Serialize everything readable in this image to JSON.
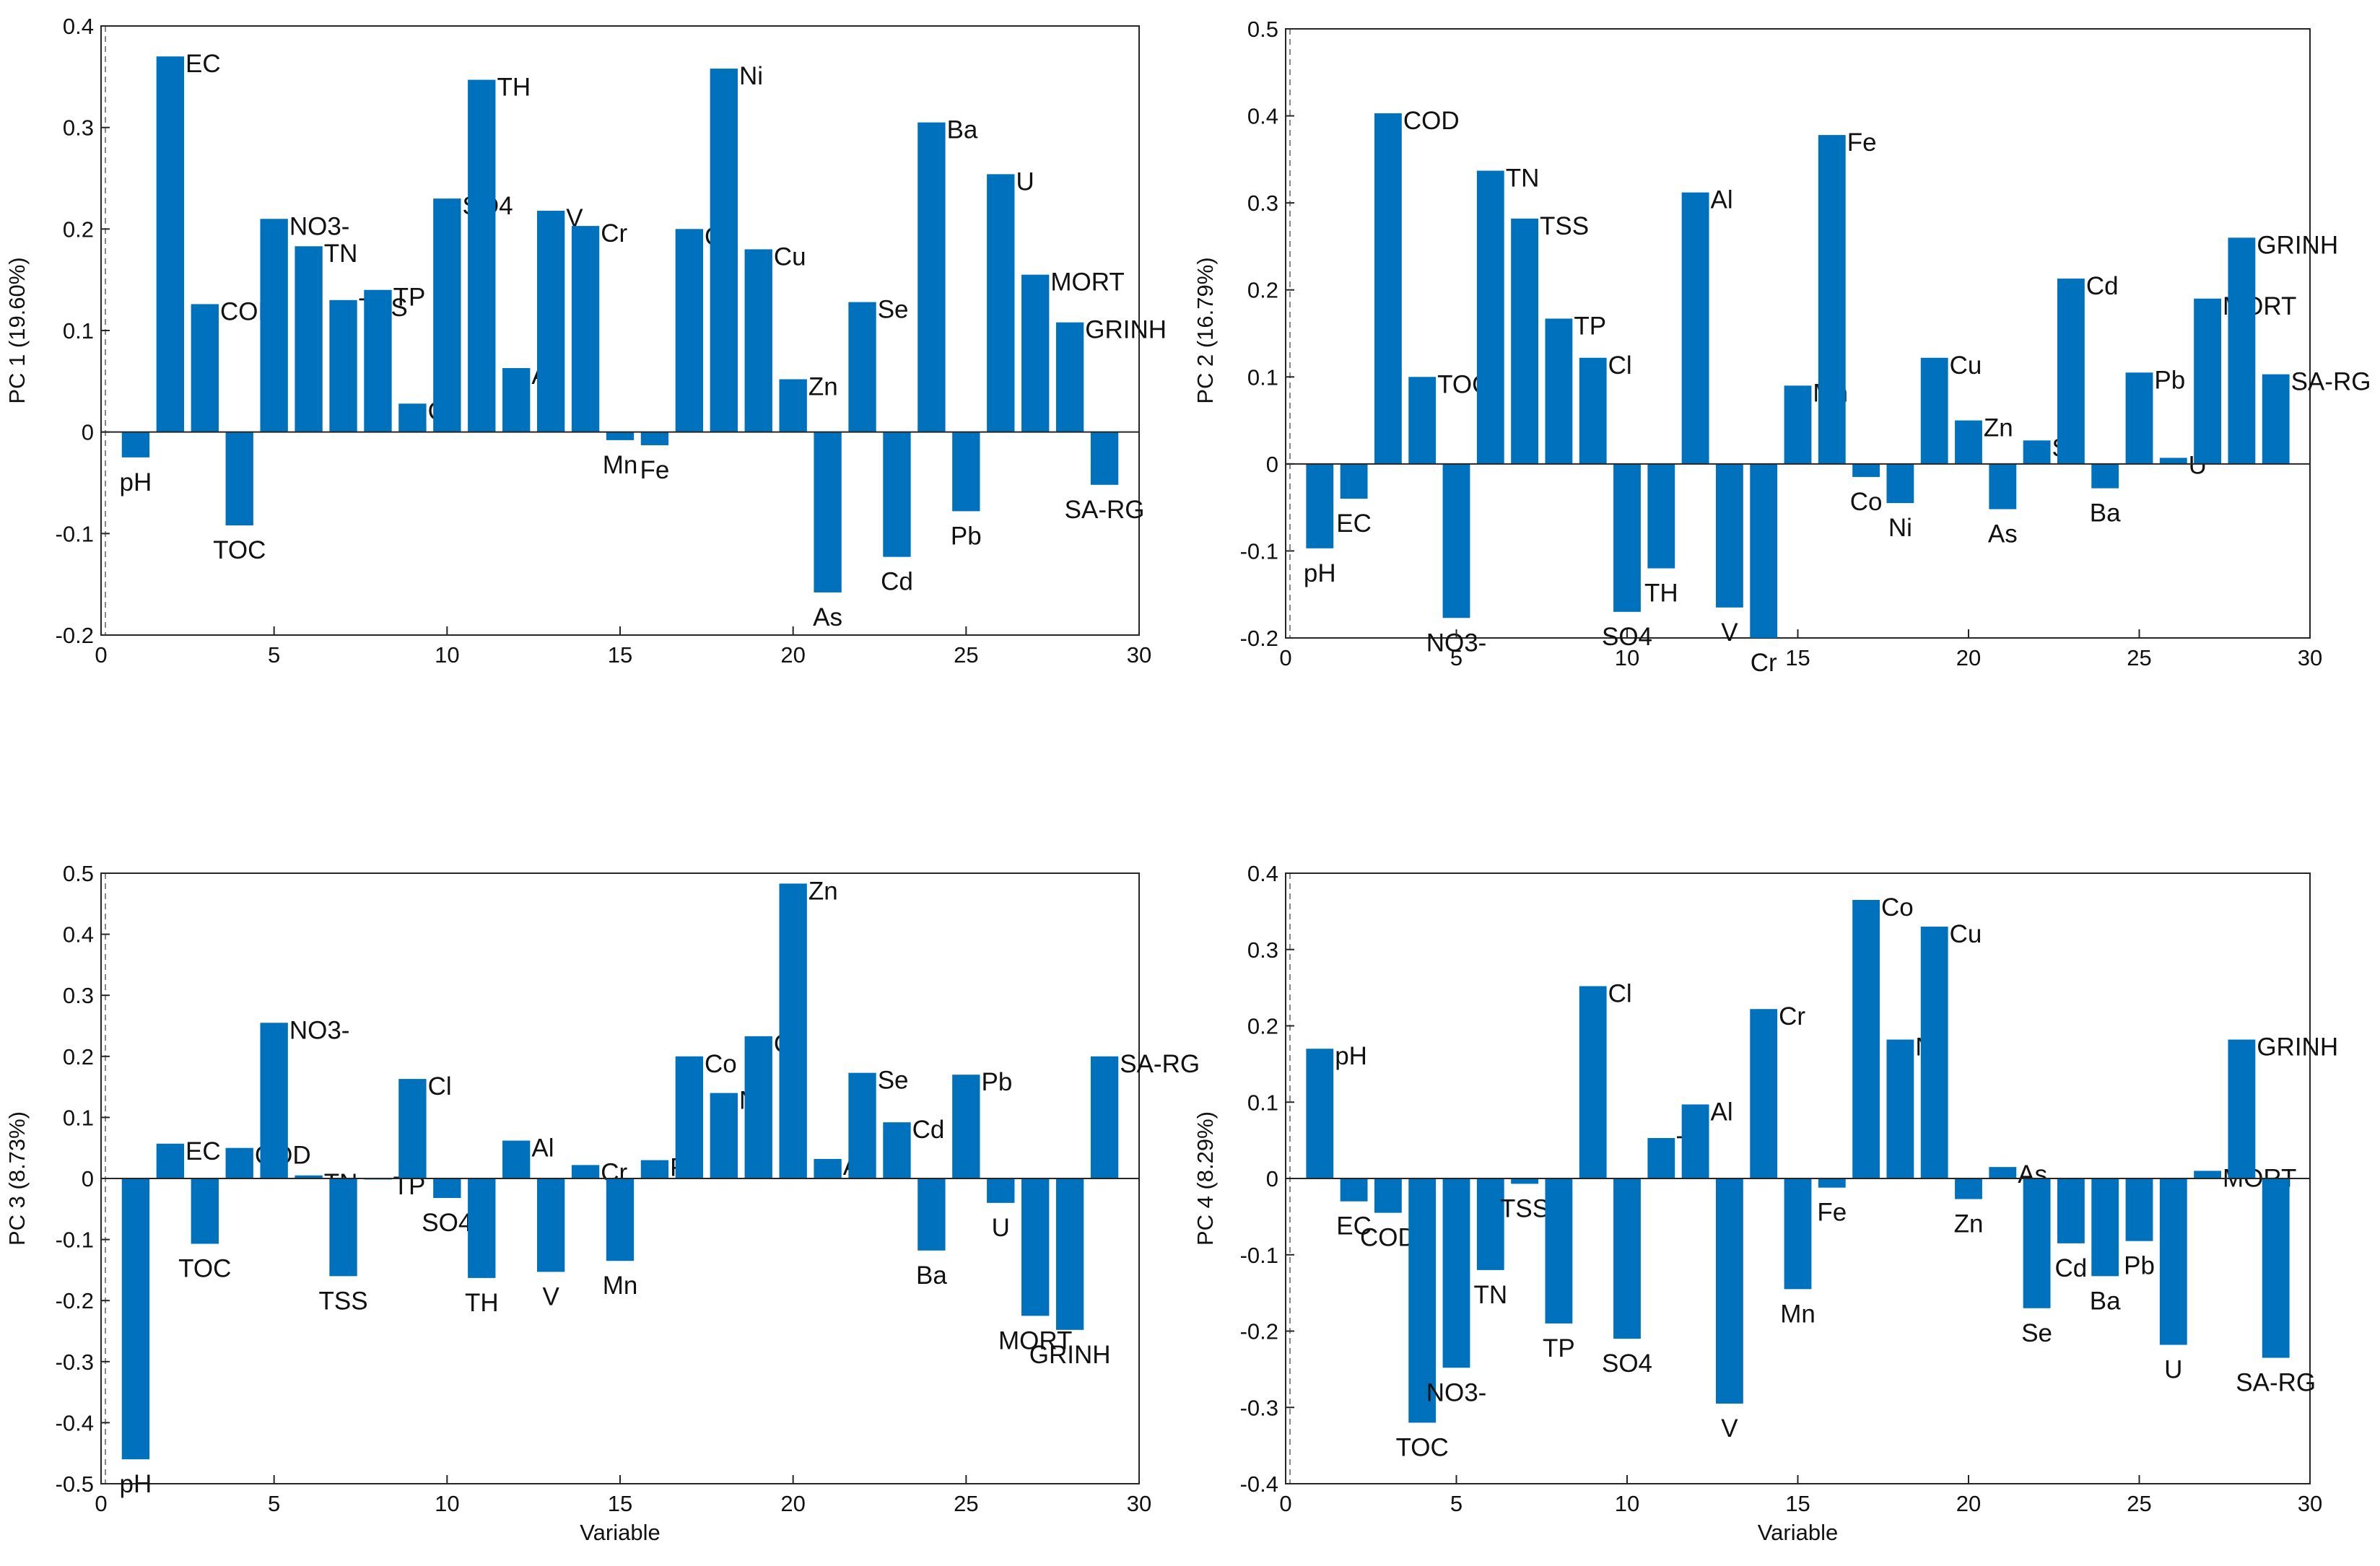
{
  "colors": {
    "bar": "#0072bd",
    "axis": "#262626",
    "zero_line": "#262626",
    "dashed": "#888888"
  },
  "chart_data": [
    {
      "type": "bar",
      "panel": "PC1",
      "ylabel": "PC 1 (19.60%)",
      "xlabel": "",
      "xlim": [
        0,
        30
      ],
      "ylim": [
        -0.2,
        0.4
      ],
      "xticks": [
        0,
        5,
        10,
        15,
        20,
        25,
        30
      ],
      "yticks": [
        -0.2,
        -0.1,
        0,
        0.1,
        0.2,
        0.3,
        0.4
      ],
      "ytick_labels": [
        "-0.2",
        "-0.1",
        "0",
        "0.1",
        "0.2",
        "0.3",
        "0.4"
      ],
      "labels": [
        "pH",
        "EC",
        "COD",
        "TOC",
        "NO3-",
        "TN",
        "TSS",
        "TP",
        "Cl",
        "SO4",
        "TH",
        "Al",
        "V",
        "Cr",
        "Mn",
        "Fe",
        "Co",
        "Ni",
        "Cu",
        "Zn",
        "As",
        "Se",
        "Cd",
        "Ba",
        "Pb",
        "U",
        "MORT",
        "GRINH",
        "SA-RG"
      ],
      "values": [
        -0.025,
        0.37,
        0.126,
        -0.092,
        0.21,
        0.183,
        0.13,
        0.14,
        0.028,
        0.23,
        0.347,
        0.063,
        0.218,
        0.203,
        -0.008,
        -0.013,
        0.2,
        0.358,
        0.18,
        0.052,
        -0.158,
        0.128,
        -0.123,
        0.305,
        -0.078,
        0.254,
        0.155,
        0.108,
        -0.052
      ]
    },
    {
      "type": "bar",
      "panel": "PC2",
      "ylabel": "PC 2 (16.79%)",
      "xlabel": "",
      "xlim": [
        0,
        30
      ],
      "ylim": [
        -0.2,
        0.5
      ],
      "xticks": [
        0,
        5,
        10,
        15,
        20,
        25,
        30
      ],
      "yticks": [
        -0.2,
        -0.1,
        0,
        0.1,
        0.2,
        0.3,
        0.4,
        0.5
      ],
      "ytick_labels": [
        "-0.2",
        "-0.1",
        "0",
        "0.1",
        "0.2",
        "0.3",
        "0.4",
        "0.5"
      ],
      "labels": [
        "pH",
        "EC",
        "COD",
        "TOC",
        "NO3-",
        "TN",
        "TSS",
        "TP",
        "Cl",
        "SO4",
        "TH",
        "Al",
        "V",
        "Cr",
        "Mn",
        "Fe",
        "Co",
        "Ni",
        "Cu",
        "Zn",
        "As",
        "Se",
        "Cd",
        "Ba",
        "Pb",
        "U",
        "MORT",
        "GRINH",
        "SA-RG"
      ],
      "values": [
        -0.097,
        -0.04,
        0.403,
        0.1,
        -0.177,
        0.337,
        0.282,
        0.167,
        0.122,
        -0.17,
        -0.12,
        0.312,
        -0.165,
        -0.2,
        0.09,
        0.378,
        -0.015,
        -0.045,
        0.122,
        0.05,
        -0.052,
        0.027,
        0.213,
        -0.028,
        0.105,
        0.007,
        0.19,
        0.26,
        0.103
      ]
    },
    {
      "type": "bar",
      "panel": "PC3",
      "ylabel": "PC 3 (8.73%)",
      "xlabel": "Variable",
      "xlim": [
        0,
        30
      ],
      "ylim": [
        -0.5,
        0.5
      ],
      "xticks": [
        0,
        5,
        10,
        15,
        20,
        25,
        30
      ],
      "yticks": [
        -0.5,
        -0.4,
        -0.3,
        -0.2,
        -0.1,
        0,
        0.1,
        0.2,
        0.3,
        0.4,
        0.5
      ],
      "ytick_labels": [
        "-0.5",
        "-0.4",
        "-0.3",
        "-0.2",
        "-0.1",
        "0",
        "0.1",
        "0.2",
        "0.3",
        "0.4",
        "0.5"
      ],
      "labels": [
        "pH",
        "EC",
        "TOC",
        "COD",
        "NO3-",
        "TN",
        "TSS",
        "TP",
        "Cl",
        "SO4",
        "TH",
        "Al",
        "V",
        "Cr",
        "Mn",
        "Fe",
        "Co",
        "Ni",
        "Cu",
        "Zn",
        "As",
        "Se",
        "Cd",
        "Ba",
        "Pb",
        "U",
        "MORT",
        "GRINH",
        "SA-RG"
      ],
      "values": [
        -0.46,
        0.057,
        -0.107,
        0.05,
        0.255,
        0.005,
        -0.16,
        0.0,
        0.163,
        -0.032,
        -0.163,
        0.062,
        -0.153,
        0.022,
        -0.135,
        0.03,
        0.2,
        0.14,
        0.233,
        0.483,
        0.032,
        0.173,
        0.092,
        -0.118,
        0.17,
        -0.04,
        -0.225,
        -0.248,
        0.2
      ]
    },
    {
      "type": "bar",
      "panel": "PC4",
      "ylabel": "PC 4 (8.29%)",
      "xlabel": "Variable",
      "xlim": [
        0,
        30
      ],
      "ylim": [
        -0.4,
        0.4
      ],
      "xticks": [
        0,
        5,
        10,
        15,
        20,
        25,
        30
      ],
      "yticks": [
        -0.4,
        -0.3,
        -0.2,
        -0.1,
        0,
        0.1,
        0.2,
        0.3,
        0.4
      ],
      "ytick_labels": [
        "-0.4",
        "-0.3",
        "-0.2",
        "-0.1",
        "0",
        "0.1",
        "0.2",
        "0.3",
        "0.4"
      ],
      "labels": [
        "pH",
        "EC",
        "COD",
        "TOC",
        "NO3-",
        "TN",
        "TSS",
        "TP",
        "Cl",
        "SO4",
        "TH",
        "Al",
        "V",
        "Cr",
        "Mn",
        "Fe",
        "Co",
        "Ni",
        "Cu",
        "Zn",
        "As",
        "Se",
        "Cd",
        "Ba",
        "Pb",
        "U",
        "MORT",
        "GRINH",
        "SA-RG"
      ],
      "values": [
        0.17,
        -0.03,
        -0.045,
        -0.32,
        -0.248,
        -0.12,
        -0.007,
        -0.19,
        0.252,
        -0.21,
        0.053,
        0.097,
        -0.295,
        0.222,
        -0.145,
        -0.012,
        0.365,
        0.182,
        0.33,
        -0.027,
        0.015,
        -0.17,
        -0.085,
        -0.128,
        -0.082,
        -0.218,
        0.01,
        0.182,
        -0.235
      ]
    }
  ]
}
